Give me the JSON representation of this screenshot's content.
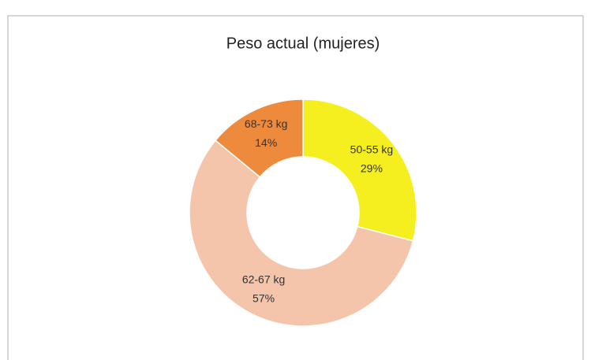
{
  "chart_data": {
    "type": "donut",
    "title": "Peso actual (mujeres)",
    "categories": [
      "50-55 kg",
      "62-67 kg",
      "68-73 kg"
    ],
    "values": [
      29,
      57,
      14
    ],
    "value_labels": [
      "29%",
      "57%",
      "14%"
    ],
    "colors": [
      "#f5ef1f",
      "#f4c5ab",
      "#ee8a3b"
    ]
  }
}
